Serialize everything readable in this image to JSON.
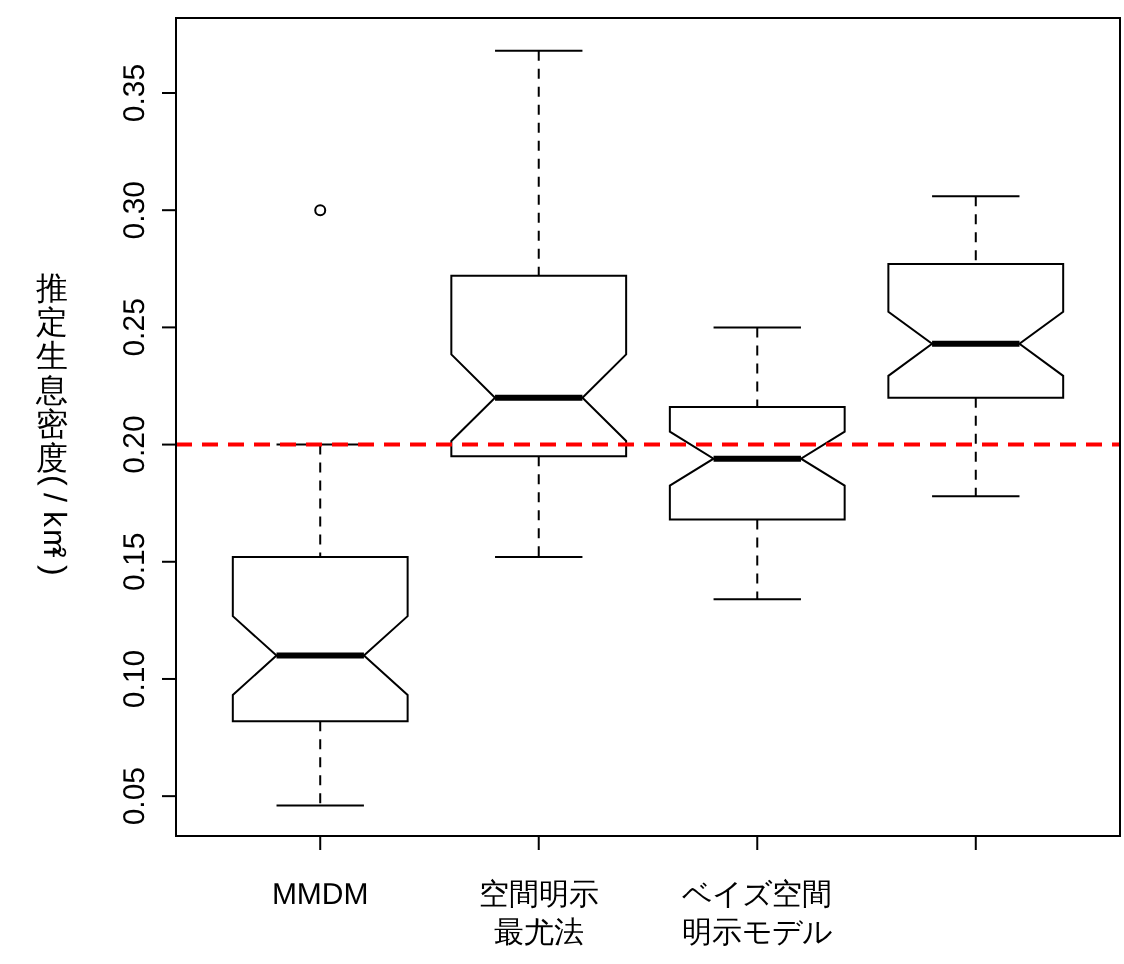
{
  "chart_data": {
    "type": "box",
    "ylabel": "推定生息密度(/km²)",
    "categories": [
      "MMDM",
      "空間明示最尤法",
      "ベイズ空間明示モデル",
      null
    ],
    "boxes": [
      {
        "low": 0.046,
        "q1": 0.082,
        "median": 0.11,
        "q3": 0.152,
        "high": 0.2,
        "outliers": [
          0.3
        ]
      },
      {
        "low": 0.152,
        "q1": 0.195,
        "median": 0.22,
        "q3": 0.272,
        "high": 0.368
      },
      {
        "low": 0.134,
        "q1": 0.168,
        "median": 0.194,
        "q3": 0.216,
        "high": 0.25
      },
      {
        "low": 0.178,
        "q1": 0.22,
        "median": 0.243,
        "q3": 0.277,
        "high": 0.306
      }
    ],
    "ylim": [
      0.033,
      0.382
    ],
    "yticks": [
      {
        "value": 0.05,
        "label": "0.05"
      },
      {
        "value": 0.1,
        "label": "0.10"
      },
      {
        "value": 0.15,
        "label": "0.15"
      },
      {
        "value": 0.2,
        "label": "0.20"
      },
      {
        "value": 0.25,
        "label": "0.25"
      },
      {
        "value": 0.3,
        "label": "0.30"
      },
      {
        "value": 0.35,
        "label": "0.35"
      }
    ],
    "ref_lines": [
      {
        "axis": "y",
        "value": 0.2,
        "color": "#ff0000",
        "line_style": "dashed"
      }
    ]
  }
}
